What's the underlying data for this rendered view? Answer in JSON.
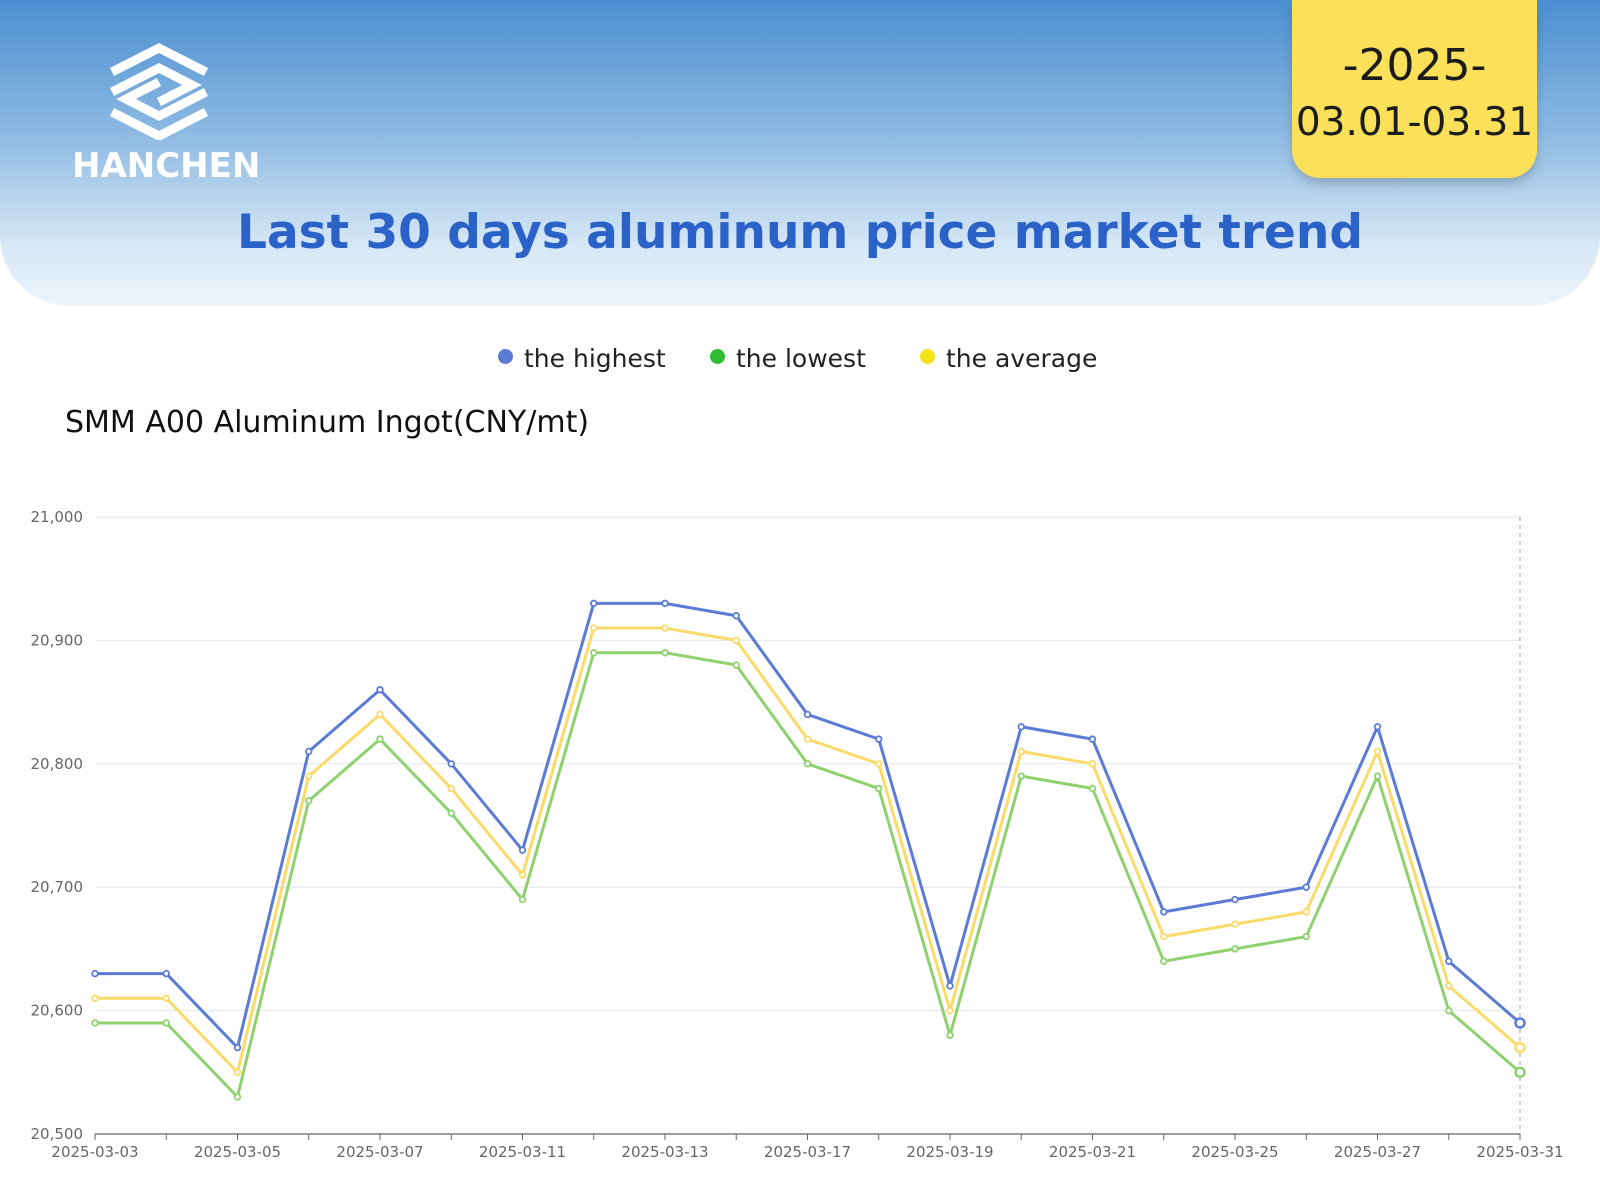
{
  "brand": {
    "logo_text": "HANCHEN"
  },
  "date_badge": {
    "year": "-2025-",
    "range": "03.01-03.31"
  },
  "header": {
    "title": "Last 30 days aluminum price market trend"
  },
  "colors": {
    "highest": "#5b7bd5",
    "lowest": "#8fd16f",
    "average": "#fadb6a",
    "legend_highest": "#5b7bd5",
    "legend_lowest": "#2fbd2f",
    "legend_average": "#f5e31a",
    "title": "#2a62c8",
    "badge": "#fbe05a"
  },
  "legend": [
    {
      "label": "the highest",
      "key": "highest"
    },
    {
      "label": "the lowest",
      "key": "lowest"
    },
    {
      "label": "the average",
      "key": "average"
    }
  ],
  "chart_data": {
    "type": "line",
    "title": "SMM A00 Aluminum Ingot(CNY/mt)",
    "xlabel": "",
    "ylabel": "",
    "ylim": [
      20500,
      21000
    ],
    "yticks": [
      20500,
      20600,
      20700,
      20800,
      20900,
      21000
    ],
    "ytick_labels": [
      "20,500",
      "20,600",
      "20,700",
      "20,800",
      "20,900",
      "21,000"
    ],
    "x": [
      "2025-03-03",
      "2025-03-04",
      "2025-03-05",
      "2025-03-06",
      "2025-03-07",
      "2025-03-10",
      "2025-03-11",
      "2025-03-12",
      "2025-03-13",
      "2025-03-14",
      "2025-03-17",
      "2025-03-18",
      "2025-03-19",
      "2025-03-20",
      "2025-03-21",
      "2025-03-24",
      "2025-03-25",
      "2025-03-26",
      "2025-03-27",
      "2025-03-28",
      "2025-03-31"
    ],
    "xtick_labels": [
      "2025-03-03",
      "2025-03-05",
      "2025-03-07",
      "2025-03-11",
      "2025-03-13",
      "2025-03-17",
      "2025-03-19",
      "2025-03-21",
      "2025-03-25",
      "2025-03-27",
      "2025-03-31"
    ],
    "grid": true,
    "series": [
      {
        "name": "the highest",
        "key": "highest",
        "values": [
          20630,
          20630,
          20570,
          20810,
          20860,
          20800,
          20730,
          20930,
          20930,
          20920,
          20840,
          20820,
          20620,
          20830,
          20820,
          20680,
          20690,
          20700,
          20830,
          20640,
          20590
        ]
      },
      {
        "name": "the average",
        "key": "average",
        "values": [
          20610,
          20610,
          20550,
          20790,
          20840,
          20780,
          20710,
          20910,
          20910,
          20900,
          20820,
          20800,
          20600,
          20810,
          20800,
          20660,
          20670,
          20680,
          20810,
          20620,
          20570
        ]
      },
      {
        "name": "the lowest",
        "key": "lowest",
        "values": [
          20590,
          20590,
          20530,
          20770,
          20820,
          20760,
          20690,
          20890,
          20890,
          20880,
          20800,
          20780,
          20580,
          20790,
          20780,
          20640,
          20650,
          20660,
          20790,
          20600,
          20550
        ]
      }
    ]
  }
}
